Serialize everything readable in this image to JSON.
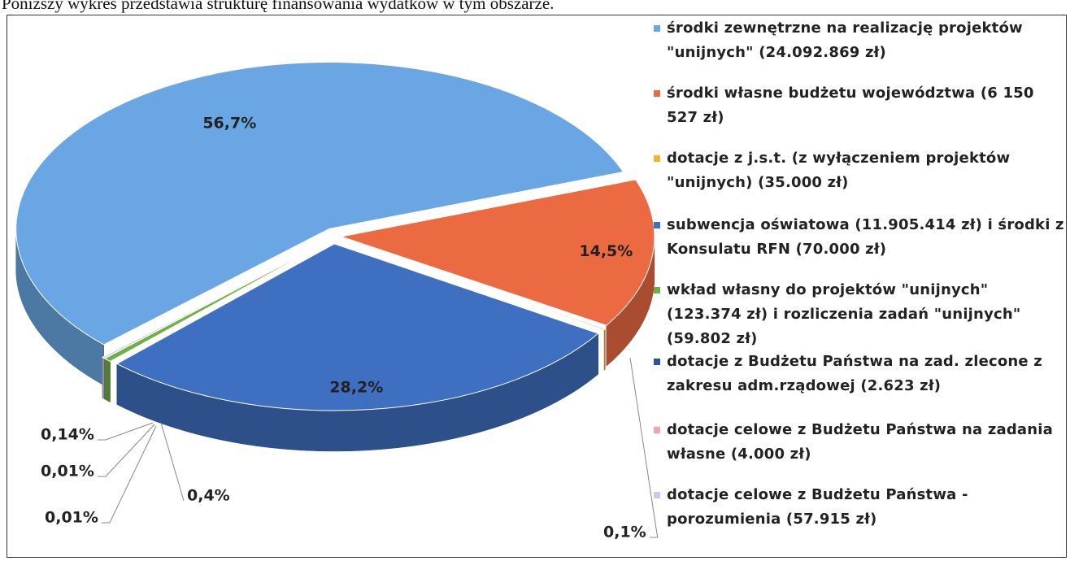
{
  "caption": "Poniższy wykres przedstawia strukturę finansowania wydatków w tym obszarze.",
  "chart_data": {
    "type": "pie",
    "series": [
      {
        "name": "środki zewnętrzne na realizację projektów \"unijnych\" (24.092.869 zł)",
        "color": "#6aa6e4"
      },
      {
        "name": "środki własne budżetu województwa (6 150 527 zł)",
        "color": "#ec6a42"
      },
      {
        "name": "dotacje z j.s.t. (z wyłączeniem projektów \"unijnych) (35.000 zł)",
        "color": "#f5b335"
      },
      {
        "name": "subwencja oświatowa (11.905.414 zł) i środki z Konsulatu RFN (70.000 zł)",
        "color": "#3f6fc0"
      },
      {
        "name": "wkład własny do projektów \"unijnych\" (123.374 zł) i rozliczenia zadań \"unijnych\" (59.802 zł)",
        "color": "#6fb044"
      },
      {
        "name": "dotacje z Budżetu Państwa na zad. zlecone z zakresu adm.rządowej (2.623 zł)",
        "color": "#2f4f9f"
      },
      {
        "name": "dotacje celowe z Budżetu Państwa na zadania własne (4.000 zł)",
        "color": "#f4a3ab"
      },
      {
        "name": "dotacje celowe z Budżetu Państwa - porozumienia (57.915 zł)",
        "color": "#c9c9e8"
      }
    ],
    "values": [
      56.7,
      14.5,
      0.1,
      28.2,
      0.4,
      0.01,
      0.01,
      0.14
    ],
    "value_labels": [
      "56,7%",
      "14,5%",
      "0,1%",
      "28,2%",
      "0,4%",
      "0,01%",
      "0,01%",
      "0,14%"
    ],
    "legend": "right"
  }
}
